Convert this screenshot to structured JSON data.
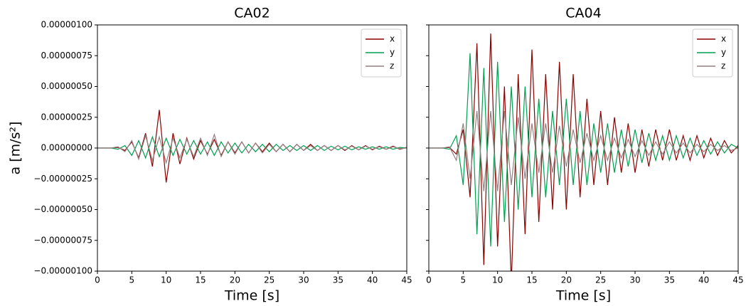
{
  "chart_data": [
    {
      "type": "line",
      "title": "CA02",
      "xlabel": "Time [s]",
      "ylabel": "a [m/s²]",
      "legend": "upper right",
      "x": [
        0,
        1,
        2,
        3,
        4,
        5,
        6,
        7,
        8,
        9,
        10,
        11,
        12,
        13,
        14,
        15,
        16,
        17,
        18,
        19,
        20,
        21,
        22,
        23,
        24,
        25,
        26,
        27,
        28,
        29,
        30,
        31,
        32,
        33,
        34,
        35,
        36,
        37,
        38,
        39,
        40,
        41,
        42,
        43,
        44,
        45
      ],
      "series": [
        {
          "name": "x",
          "color": "#8b0000",
          "values": [
            0,
            0,
            0,
            5e-09,
            -2e-08,
            5e-08,
            -8e-08,
            1.2e-07,
            -1.5e-07,
            3.1e-07,
            -2.8e-07,
            1.2e-07,
            -1.3e-07,
            8e-08,
            -9e-08,
            6e-08,
            -5e-08,
            7e-08,
            -6e-08,
            5e-08,
            -4e-08,
            5e-08,
            -4e-08,
            4e-08,
            -3e-08,
            4e-08,
            -3e-08,
            3e-08,
            -3e-08,
            3e-08,
            -2e-08,
            3e-08,
            -2e-08,
            2e-08,
            -2e-08,
            2e-08,
            -2e-08,
            2e-08,
            -1.5e-08,
            2e-08,
            -1.5e-08,
            1.5e-08,
            -1e-08,
            1.5e-08,
            -1e-08,
            5e-09
          ]
        },
        {
          "name": "y",
          "color": "#00a050",
          "values": [
            0,
            0,
            0,
            -1e-08,
            2e-08,
            -6e-08,
            6e-08,
            -8e-08,
            9e-08,
            -7e-08,
            8e-08,
            -6e-08,
            7e-08,
            -5e-08,
            6e-08,
            -5e-08,
            5e-08,
            -6e-08,
            5e-08,
            -4e-08,
            4e-08,
            -4e-08,
            3e-08,
            -3e-08,
            3e-08,
            -3e-08,
            3e-08,
            -2e-08,
            2e-08,
            -2e-08,
            2e-08,
            -2e-08,
            2e-08,
            -2e-08,
            1.5e-08,
            -1.5e-08,
            1.5e-08,
            -1.5e-08,
            1e-08,
            -1e-08,
            1e-08,
            -1e-08,
            1e-08,
            -1e-08,
            5e-09,
            0
          ]
        },
        {
          "name": "z",
          "color": "#948080",
          "values": [
            0,
            0,
            0,
            1e-08,
            -3e-08,
            6e-08,
            -9e-08,
            1e-07,
            -1e-07,
            9e-08,
            -1.2e-07,
            8e-08,
            -8e-08,
            7e-08,
            -7e-08,
            8e-08,
            -6e-08,
            1.1e-07,
            -7e-08,
            5e-08,
            -5e-08,
            5e-08,
            -4e-08,
            4e-08,
            -4e-08,
            3e-08,
            -3e-08,
            3e-08,
            -3e-08,
            3e-08,
            -2e-08,
            2e-08,
            -2e-08,
            2e-08,
            -2e-08,
            2e-08,
            -1.5e-08,
            1.5e-08,
            -1.5e-08,
            1.5e-08,
            -1e-08,
            1e-08,
            -1e-08,
            1e-08,
            -5e-09,
            0
          ]
        }
      ],
      "xlim": [
        0,
        45
      ],
      "xticks": [
        0,
        5,
        10,
        15,
        20,
        25,
        30,
        35,
        40,
        45
      ],
      "ylim": [
        -1e-06,
        1e-06
      ],
      "yticks": [
        {
          "value": -1e-06,
          "label": "−0.00000100"
        },
        {
          "value": -7.5e-07,
          "label": "−0.00000075"
        },
        {
          "value": -5e-07,
          "label": "−0.00000050"
        },
        {
          "value": -2.5e-07,
          "label": "−0.00000025"
        },
        {
          "value": 0,
          "label": "0.00000000"
        },
        {
          "value": 2.5e-07,
          "label": "0.00000025"
        },
        {
          "value": 5e-07,
          "label": "0.00000050"
        },
        {
          "value": 7.5e-07,
          "label": "0.00000075"
        },
        {
          "value": 1e-06,
          "label": "0.00000100"
        }
      ]
    },
    {
      "type": "line",
      "title": "CA04",
      "xlabel": "Time [s]",
      "legend": "upper right",
      "x": [
        0,
        1,
        2,
        3,
        4,
        5,
        6,
        7,
        8,
        9,
        10,
        11,
        12,
        13,
        14,
        15,
        16,
        17,
        18,
        19,
        20,
        21,
        22,
        23,
        24,
        25,
        26,
        27,
        28,
        29,
        30,
        31,
        32,
        33,
        34,
        35,
        36,
        37,
        38,
        39,
        40,
        41,
        42,
        43,
        44,
        45
      ],
      "series": [
        {
          "name": "x",
          "color": "#8b0000",
          "values": [
            0,
            0,
            0,
            5e-09,
            -5e-08,
            1.5e-07,
            -4e-07,
            8.5e-07,
            -9.5e-07,
            9.3e-07,
            -8e-07,
            5e-07,
            -1.1e-06,
            6e-07,
            -7e-07,
            8e-07,
            -6e-07,
            6e-07,
            -5e-07,
            7e-07,
            -5e-07,
            6e-07,
            -4e-07,
            4e-07,
            -3e-07,
            3e-07,
            -3e-07,
            2.5e-07,
            -2e-07,
            2e-07,
            -2e-07,
            1.5e-07,
            -1.5e-07,
            1.5e-07,
            -1e-07,
            1.5e-07,
            -1e-07,
            1e-07,
            -1e-07,
            1e-07,
            -8e-08,
            8e-08,
            -6e-08,
            6e-08,
            -4e-08,
            2e-08
          ]
        },
        {
          "name": "y",
          "color": "#00a050",
          "values": [
            0,
            0,
            0,
            -1e-08,
            1e-07,
            -3e-07,
            7.7e-07,
            -7e-07,
            6.5e-07,
            -8e-07,
            7e-07,
            -6e-07,
            5e-07,
            -5e-07,
            5e-07,
            -4e-07,
            4e-07,
            -4e-07,
            3e-07,
            -3e-07,
            4e-07,
            -3e-07,
            3e-07,
            -3e-07,
            2e-07,
            -2e-07,
            2e-07,
            -2e-07,
            1.5e-07,
            -1.5e-07,
            1.5e-07,
            -1.2e-07,
            1.2e-07,
            -1e-07,
            1e-07,
            -1e-07,
            1e-07,
            -8e-08,
            8e-08,
            -6e-08,
            6e-08,
            -5e-08,
            5e-08,
            -4e-08,
            3e-08,
            0
          ]
        },
        {
          "name": "z",
          "color": "#948080",
          "values": [
            0,
            0,
            0,
            1e-08,
            -1e-07,
            2e-07,
            -2.5e-07,
            3e-07,
            -3.5e-07,
            3e-07,
            -3.5e-07,
            3e-07,
            -3e-07,
            2.5e-07,
            -2.5e-07,
            2e-07,
            -2e-07,
            2e-07,
            -2e-07,
            1.8e-07,
            -1.5e-07,
            1.5e-07,
            -1.2e-07,
            1.2e-07,
            -1e-07,
            1e-07,
            -1e-07,
            8e-08,
            -8e-08,
            7e-08,
            -7e-08,
            6e-08,
            -6e-08,
            5e-08,
            -5e-08,
            5e-08,
            -4e-08,
            4e-08,
            -4e-08,
            3e-08,
            -3e-08,
            3e-08,
            -2e-08,
            2e-08,
            -2e-08,
            0
          ]
        }
      ],
      "xlim": [
        0,
        45
      ],
      "xticks": [
        0,
        5,
        10,
        15,
        20,
        25,
        30,
        35,
        40,
        45
      ],
      "ylim": [
        -1e-06,
        1e-06
      ],
      "yticks": [
        -1e-06,
        -7.5e-07,
        -5e-07,
        -2.5e-07,
        0,
        2.5e-07,
        5e-07,
        7.5e-07,
        1e-06
      ]
    }
  ]
}
